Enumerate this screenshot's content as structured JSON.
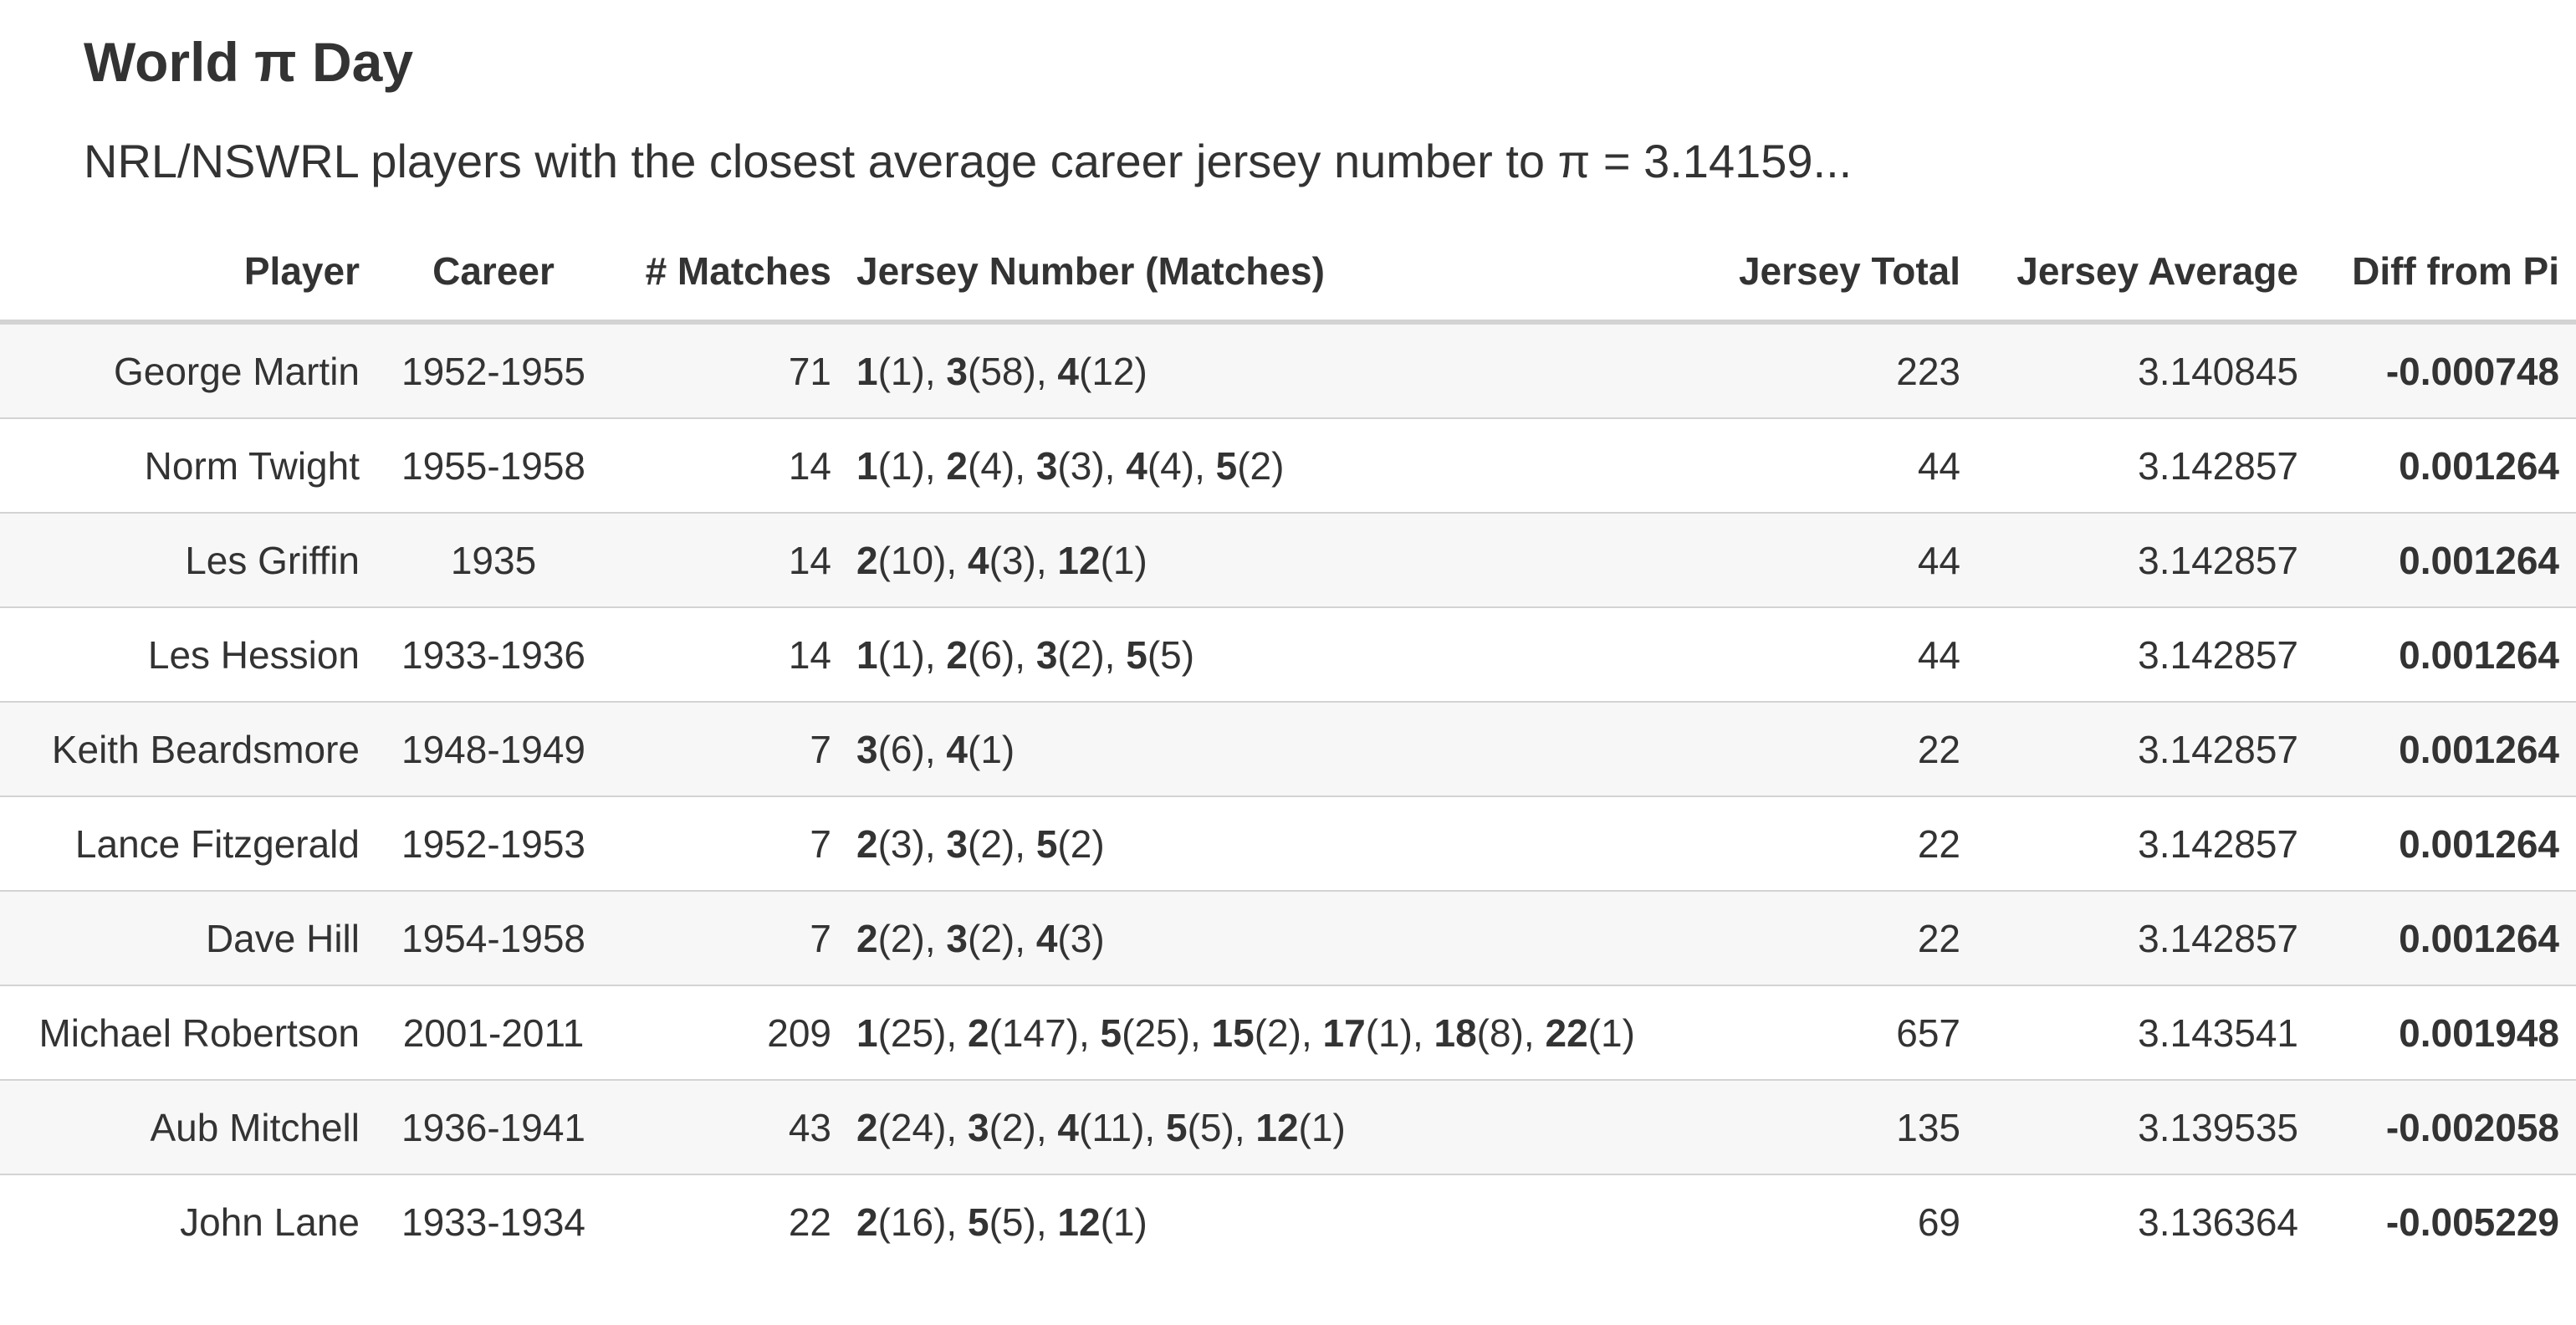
{
  "header": {
    "title": "World π Day",
    "subtitle": "NRL/NSWRL players with the closest average career jersey number to π = 3.14159..."
  },
  "table": {
    "columns": [
      "Player",
      "Career",
      "# Matches",
      "Jersey Number (Matches)",
      "Jersey Total",
      "Jersey Average",
      "Diff from Pi"
    ],
    "rows": [
      {
        "player": "George Martin",
        "career": "1952-1955",
        "matches": "71",
        "jerseys": [
          [
            "1",
            "1"
          ],
          [
            "3",
            "58"
          ],
          [
            "4",
            "12"
          ]
        ],
        "total": "223",
        "average": "3.140845",
        "diff": "-0.000748"
      },
      {
        "player": "Norm Twight",
        "career": "1955-1958",
        "matches": "14",
        "jerseys": [
          [
            "1",
            "1"
          ],
          [
            "2",
            "4"
          ],
          [
            "3",
            "3"
          ],
          [
            "4",
            "4"
          ],
          [
            "5",
            "2"
          ]
        ],
        "total": "44",
        "average": "3.142857",
        "diff": "0.001264"
      },
      {
        "player": "Les Griffin",
        "career": "1935",
        "matches": "14",
        "jerseys": [
          [
            "2",
            "10"
          ],
          [
            "4",
            "3"
          ],
          [
            "12",
            "1"
          ]
        ],
        "total": "44",
        "average": "3.142857",
        "diff": "0.001264"
      },
      {
        "player": "Les Hession",
        "career": "1933-1936",
        "matches": "14",
        "jerseys": [
          [
            "1",
            "1"
          ],
          [
            "2",
            "6"
          ],
          [
            "3",
            "2"
          ],
          [
            "5",
            "5"
          ]
        ],
        "total": "44",
        "average": "3.142857",
        "diff": "0.001264"
      },
      {
        "player": "Keith Beardsmore",
        "career": "1948-1949",
        "matches": "7",
        "jerseys": [
          [
            "3",
            "6"
          ],
          [
            "4",
            "1"
          ]
        ],
        "total": "22",
        "average": "3.142857",
        "diff": "0.001264"
      },
      {
        "player": "Lance Fitzgerald",
        "career": "1952-1953",
        "matches": "7",
        "jerseys": [
          [
            "2",
            "3"
          ],
          [
            "3",
            "2"
          ],
          [
            "5",
            "2"
          ]
        ],
        "total": "22",
        "average": "3.142857",
        "diff": "0.001264"
      },
      {
        "player": "Dave Hill",
        "career": "1954-1958",
        "matches": "7",
        "jerseys": [
          [
            "2",
            "2"
          ],
          [
            "3",
            "2"
          ],
          [
            "4",
            "3"
          ]
        ],
        "total": "22",
        "average": "3.142857",
        "diff": "0.001264"
      },
      {
        "player": "Michael Robertson",
        "career": "2001-2011",
        "matches": "209",
        "jerseys": [
          [
            "1",
            "25"
          ],
          [
            "2",
            "147"
          ],
          [
            "5",
            "25"
          ],
          [
            "15",
            "2"
          ],
          [
            "17",
            "1"
          ],
          [
            "18",
            "8"
          ],
          [
            "22",
            "1"
          ]
        ],
        "total": "657",
        "average": "3.143541",
        "diff": "0.001948"
      },
      {
        "player": "Aub Mitchell",
        "career": "1936-1941",
        "matches": "43",
        "jerseys": [
          [
            "2",
            "24"
          ],
          [
            "3",
            "2"
          ],
          [
            "4",
            "11"
          ],
          [
            "5",
            "5"
          ],
          [
            "12",
            "1"
          ]
        ],
        "total": "135",
        "average": "3.139535",
        "diff": "-0.002058"
      },
      {
        "player": "John Lane",
        "career": "1933-1934",
        "matches": "22",
        "jerseys": [
          [
            "2",
            "16"
          ],
          [
            "5",
            "5"
          ],
          [
            "12",
            "1"
          ]
        ],
        "total": "69",
        "average": "3.136364",
        "diff": "-0.005229"
      }
    ]
  }
}
